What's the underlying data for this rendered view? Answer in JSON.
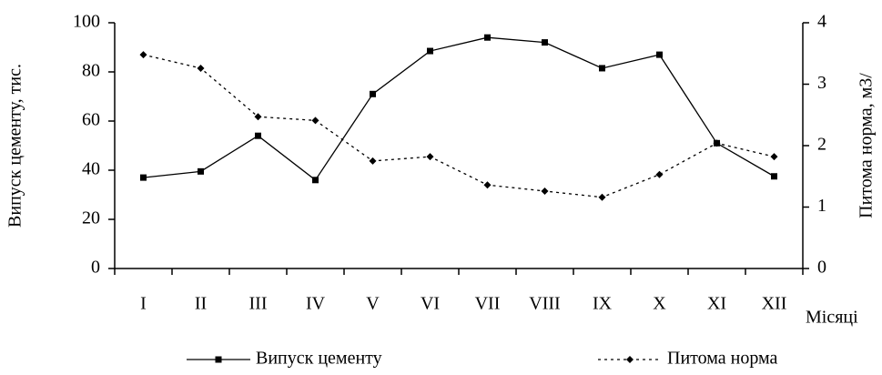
{
  "chart_data": {
    "type": "line",
    "categories": [
      "I",
      "II",
      "III",
      "IV",
      "V",
      "VI",
      "VII",
      "VIII",
      "IX",
      "X",
      "XI",
      "XII"
    ],
    "x_label": "Місяці",
    "y_label": "Випуск цементу, тис.",
    "y2_label": "Питома норма, м3/",
    "ylim": [
      0,
      100
    ],
    "yticks": [
      0,
      20,
      40,
      60,
      80,
      100
    ],
    "y2lim": [
      0,
      4
    ],
    "y2ticks": [
      0,
      1,
      2,
      3,
      4
    ],
    "series": [
      {
        "name": "Випуск цементу",
        "color": "#000000",
        "style": "solid",
        "marker": "square",
        "values": [
          37,
          39.5,
          54,
          36,
          71,
          88.5,
          94,
          92,
          81.5,
          87,
          51,
          37.5
        ]
      },
      {
        "name": "Питома норма",
        "color": "#000000",
        "style": "dotted",
        "marker": "diamond",
        "axis": "y2",
        "values": [
          3.48,
          3.26,
          2.47,
          2.41,
          1.75,
          1.82,
          1.36,
          1.26,
          1.16,
          1.53,
          2.04,
          1.82
        ]
      }
    ]
  }
}
